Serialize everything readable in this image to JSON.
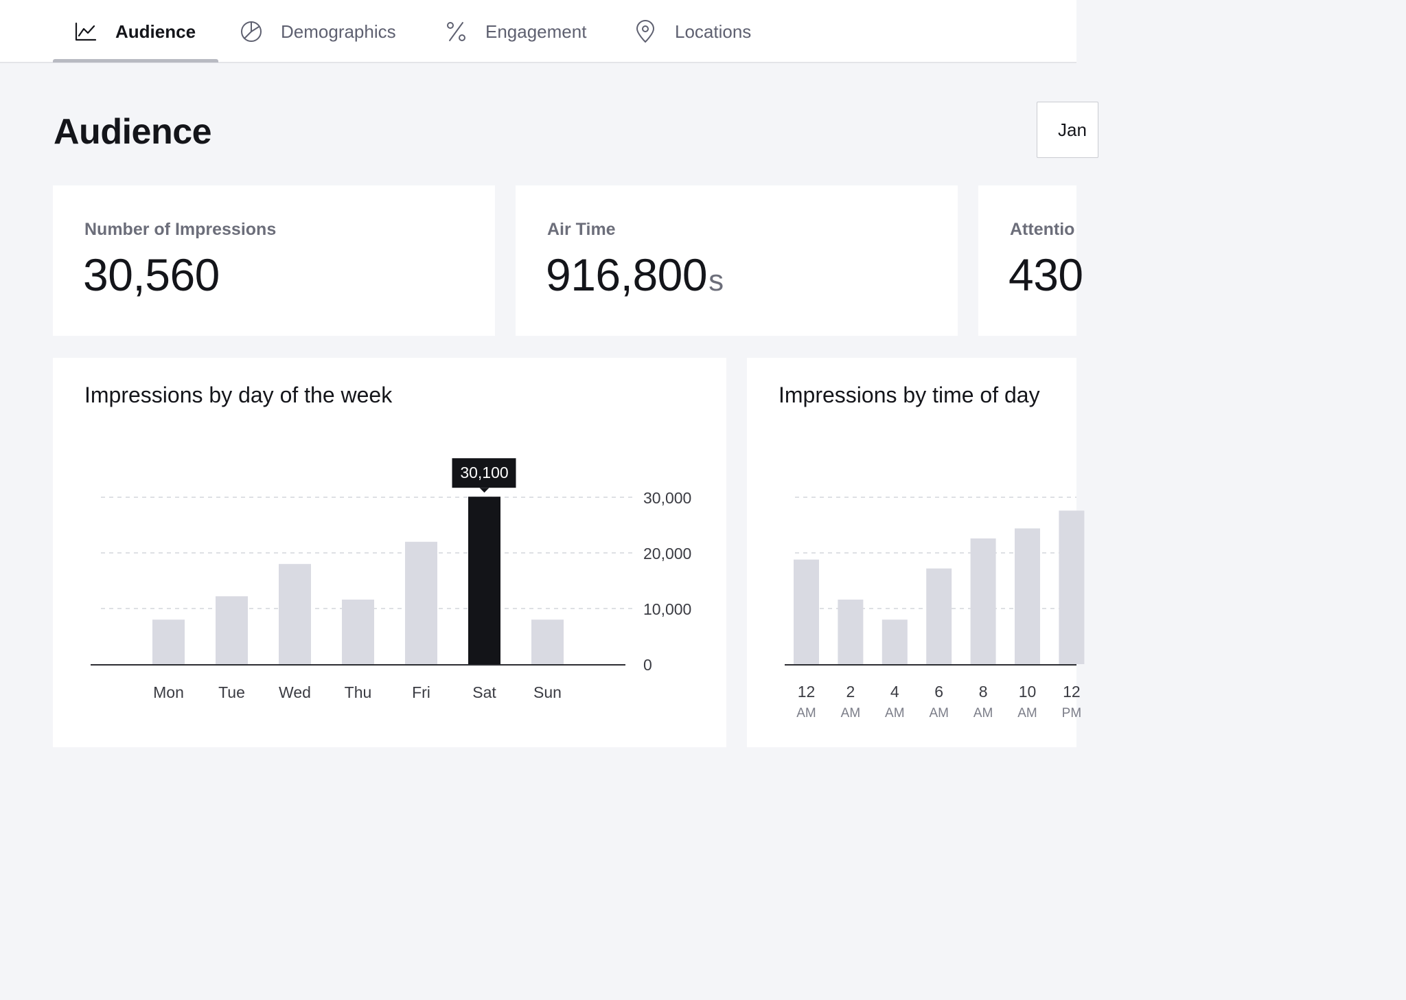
{
  "nav": {
    "tabs": [
      {
        "label": "Audience",
        "icon": "line-chart-icon",
        "active": true
      },
      {
        "label": "Demographics",
        "icon": "pie-chart-icon",
        "active": false
      },
      {
        "label": "Engagement",
        "icon": "percent-icon",
        "active": false
      },
      {
        "label": "Locations",
        "icon": "map-pin-icon",
        "active": false
      }
    ]
  },
  "header": {
    "title": "Audience",
    "date_picker_text": "Jan"
  },
  "kpis": [
    {
      "label": "Number of Impressions",
      "value": "30,560",
      "unit": ""
    },
    {
      "label": "Air Time",
      "value": "916,800",
      "unit": "s"
    },
    {
      "label": "Attentio",
      "value": "430",
      "unit": ""
    }
  ],
  "colors": {
    "bar": "#d9dae2",
    "bar_highlight": "#131418",
    "axis": "#2b2c31",
    "grid": "#d4d5db",
    "tick_text": "#3a3b42",
    "sub_tick_text": "#7b7d88"
  },
  "chart_data": [
    {
      "type": "bar",
      "title": "Impressions by day of the week",
      "categories": [
        "Mon",
        "Tue",
        "Wed",
        "Thu",
        "Fri",
        "Sat",
        "Sun"
      ],
      "values": [
        8000,
        12200,
        18000,
        11600,
        22000,
        30100,
        8000
      ],
      "highlight_index": 5,
      "tooltip": "30,100",
      "ylim": [
        0,
        30000
      ],
      "yticks": [
        0,
        10000,
        20000,
        30000
      ],
      "ytick_labels": [
        "0",
        "10,000",
        "20,000",
        "30,000"
      ],
      "grid": true
    },
    {
      "type": "bar",
      "title": "Impressions by time of day",
      "categories": [
        "12 AM",
        "2 AM",
        "4 AM",
        "6 AM",
        "8 AM",
        "10 AM",
        "12 PM"
      ],
      "tick_lines": [
        [
          "12",
          "AM"
        ],
        [
          "2",
          "AM"
        ],
        [
          "4",
          "AM"
        ],
        [
          "6",
          "AM"
        ],
        [
          "8",
          "AM"
        ],
        [
          "10",
          "AM"
        ],
        [
          "12",
          "PM"
        ]
      ],
      "values": [
        18800,
        11600,
        8000,
        17200,
        22600,
        24400,
        27600
      ],
      "ylim": [
        0,
        30000
      ],
      "yticks": [
        0,
        10000,
        20000,
        30000
      ],
      "grid": true
    }
  ]
}
